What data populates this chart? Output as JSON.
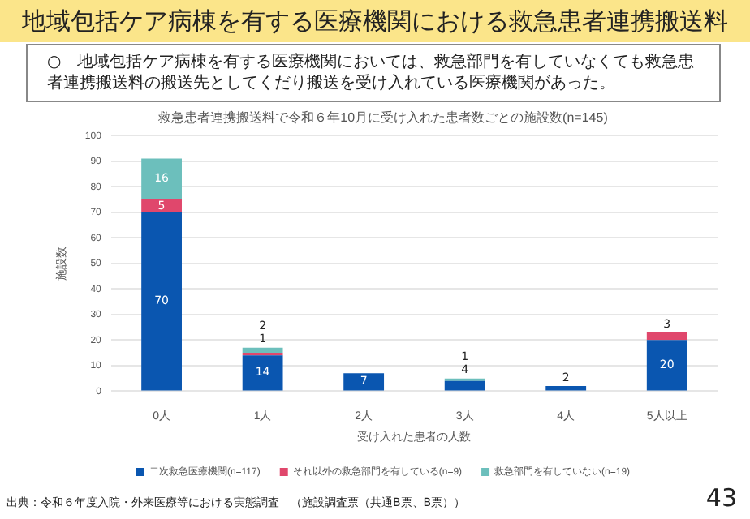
{
  "chart_data": {
    "type": "bar",
    "stacked": true,
    "title": "地域包括ケア病棟を有する医療機関における救急患者連携搬送料",
    "subtitle": "救急患者連携搬送料で令和６年10月に受け入れた患者数ごとの施設数(n=145)",
    "xlabel": "受け入れた患者の人数",
    "ylabel": "施設数",
    "categories": [
      "0人",
      "1人",
      "2人",
      "3人",
      "4人",
      "5人以上"
    ],
    "series": [
      {
        "name": "二次救急医療機関(n=117)",
        "color": "#0a56b0",
        "values": [
          70,
          14,
          7,
          4,
          2,
          20
        ],
        "value_labels": [
          "70",
          "14",
          "7",
          "4",
          "2",
          "20"
        ]
      },
      {
        "name": "それ以外の救急部門を有している(n=9)",
        "color": "#e0476c",
        "values": [
          5,
          1,
          0,
          0,
          0,
          3
        ],
        "value_labels": [
          "5",
          "1",
          null,
          null,
          null,
          "3"
        ]
      },
      {
        "name": "救急部門を有していない(n=19)",
        "color": "#6cbfbc",
        "values": [
          16,
          2,
          0,
          1,
          0,
          0
        ],
        "value_labels": [
          "16",
          "2",
          null,
          "1",
          null,
          null
        ]
      }
    ],
    "ylim": [
      0,
      100
    ],
    "yticks": [
      0,
      10,
      20,
      30,
      40,
      50,
      60,
      70,
      80,
      90,
      100
    ],
    "grid": "y",
    "legend": "bottom",
    "annotations": [
      "○　地域包括ケア病棟を有する医療機関においては、救急部門を有していなくても救急患者連携搬送料の搬送先としてくだり搬送を受け入れている医療機関があった。",
      "出典：令和６年度入院・外来医療等における実態調査　（施設調査票（共通B票、B票））",
      "43"
    ]
  }
}
